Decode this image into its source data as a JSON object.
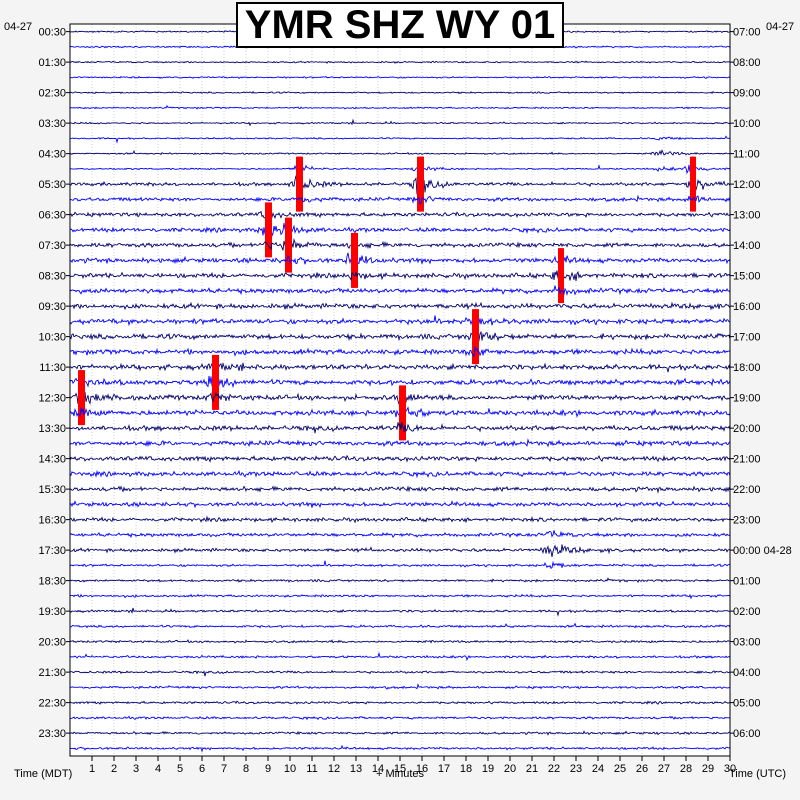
{
  "title": "YMR SHZ WY 01",
  "left_date": "04-27",
  "right_date": "04-27",
  "x_label_left": "Time (MDT)",
  "x_label_center": "+ Minutes",
  "x_label_right": "Time (UTC)",
  "colors": {
    "trace_dark": "#00006e",
    "trace_blue": "#0000ff",
    "clip": "#ff0000",
    "grid": "#b4b4b4",
    "background": "#ffffff"
  },
  "chart_data": {
    "type": "line",
    "title": "YMR SHZ WY 01",
    "xlabel": "+ Minutes",
    "x_ticks": [
      "1",
      "2",
      "3",
      "4",
      "5",
      "6",
      "7",
      "8",
      "9",
      "10",
      "11",
      "12",
      "13",
      "14",
      "15",
      "16",
      "17",
      "18",
      "19",
      "20",
      "21",
      "22",
      "23",
      "24",
      "25",
      "26",
      "27",
      "28",
      "29",
      "30"
    ],
    "xlim": [
      0,
      30
    ],
    "traces_per_hour": 2,
    "trace_count": 48,
    "left_ticks": [
      "00:30",
      "01:30",
      "02:30",
      "03:30",
      "04:30",
      "05:30",
      "06:30",
      "07:30",
      "08:30",
      "09:30",
      "10:30",
      "11:30",
      "12:30",
      "13:30",
      "14:30",
      "15:30",
      "16:30",
      "17:30",
      "18:30",
      "19:30",
      "20:30",
      "21:30",
      "22:30",
      "23:30"
    ],
    "right_ticks": [
      "07:00",
      "08:00",
      "09:00",
      "10:00",
      "11:00",
      "12:00",
      "13:00",
      "14:00",
      "15:00",
      "16:00",
      "17:00",
      "18:00",
      "19:00",
      "20:00",
      "21:00",
      "22:00",
      "23:00",
      "00:00 04-28",
      "01:00",
      "02:00",
      "03:00",
      "04:00",
      "05:00",
      "06:00"
    ],
    "events": [
      {
        "row": 8,
        "minute": 26.8,
        "strength": 0.6,
        "clip": false
      },
      {
        "row": 10,
        "minute": 10.3,
        "strength": 1.4,
        "clip": true
      },
      {
        "row": 10,
        "minute": 15.8,
        "strength": 1.3,
        "clip": true
      },
      {
        "row": 10,
        "minute": 28.2,
        "strength": 1.4,
        "clip": true
      },
      {
        "row": 13,
        "minute": 8.9,
        "strength": 1.3,
        "clip": true
      },
      {
        "row": 14,
        "minute": 9.8,
        "strength": 1.2,
        "clip": true
      },
      {
        "row": 15,
        "minute": 12.8,
        "strength": 1.1,
        "clip": true
      },
      {
        "row": 16,
        "minute": 22.2,
        "strength": 1.3,
        "clip": true
      },
      {
        "row": 20,
        "minute": 18.3,
        "strength": 1.4,
        "clip": true
      },
      {
        "row": 23,
        "minute": 6.5,
        "strength": 1.2,
        "clip": true
      },
      {
        "row": 24,
        "minute": 0.4,
        "strength": 1.3,
        "clip": true
      },
      {
        "row": 25,
        "minute": 15.0,
        "strength": 1.5,
        "clip": true
      },
      {
        "row": 34,
        "minute": 21.8,
        "strength": 1.2,
        "clip": false
      }
    ]
  }
}
